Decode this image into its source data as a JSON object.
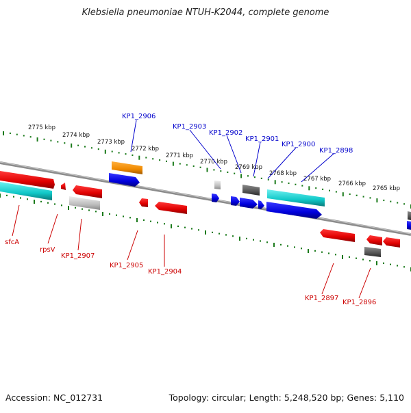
{
  "title": "Klebsiella pneumoniae NTUH-K2044, complete genome",
  "footer": {
    "accession": "Accession: NC_012731",
    "summary": "Topology: circular; Length: 5,248,520 bp; Genes: 5,110"
  },
  "colors": {
    "plus_strand_label": "#0000cc",
    "minus_strand_label": "#cc0000",
    "backbone": "#8c8c8c",
    "tick": "#1a7a1a"
  },
  "scale_labels": [
    {
      "id": "kbp-2775",
      "text": "2775 kbp"
    },
    {
      "id": "kbp-2774",
      "text": "2774 kbp"
    },
    {
      "id": "kbp-2773",
      "text": "2773 kbp"
    },
    {
      "id": "kbp-2772",
      "text": "2772 kbp"
    },
    {
      "id": "kbp-2771",
      "text": "2771 kbp"
    },
    {
      "id": "kbp-2770",
      "text": "2770 kbp"
    },
    {
      "id": "kbp-2769",
      "text": "2769 kbp"
    },
    {
      "id": "kbp-2768",
      "text": "2768 kbp"
    },
    {
      "id": "kbp-2767",
      "text": "2767 kbp"
    },
    {
      "id": "kbp-2766",
      "text": "2766 kbp"
    },
    {
      "id": "kbp-2765",
      "text": "2765 kbp"
    }
  ],
  "gene_labels_top": [
    {
      "id": "KP1_2906",
      "text": "KP1_2906"
    },
    {
      "id": "KP1_2903",
      "text": "KP1_2903"
    },
    {
      "id": "KP1_2902",
      "text": "KP1_2902"
    },
    {
      "id": "KP1_2901",
      "text": "KP1_2901"
    },
    {
      "id": "KP1_2900",
      "text": "KP1_2900"
    },
    {
      "id": "KP1_2898",
      "text": "KP1_2898"
    }
  ],
  "gene_labels_bottom": [
    {
      "id": "sfcA",
      "text": "sfcA"
    },
    {
      "id": "rpsV",
      "text": "rpsV"
    },
    {
      "id": "KP1_2907",
      "text": "KP1_2907"
    },
    {
      "id": "KP1_2905",
      "text": "KP1_2905"
    },
    {
      "id": "KP1_2904",
      "text": "KP1_2904"
    },
    {
      "id": "KP1_2897",
      "text": "KP1_2897"
    },
    {
      "id": "KP1_2896",
      "text": "KP1_2896"
    }
  ]
}
